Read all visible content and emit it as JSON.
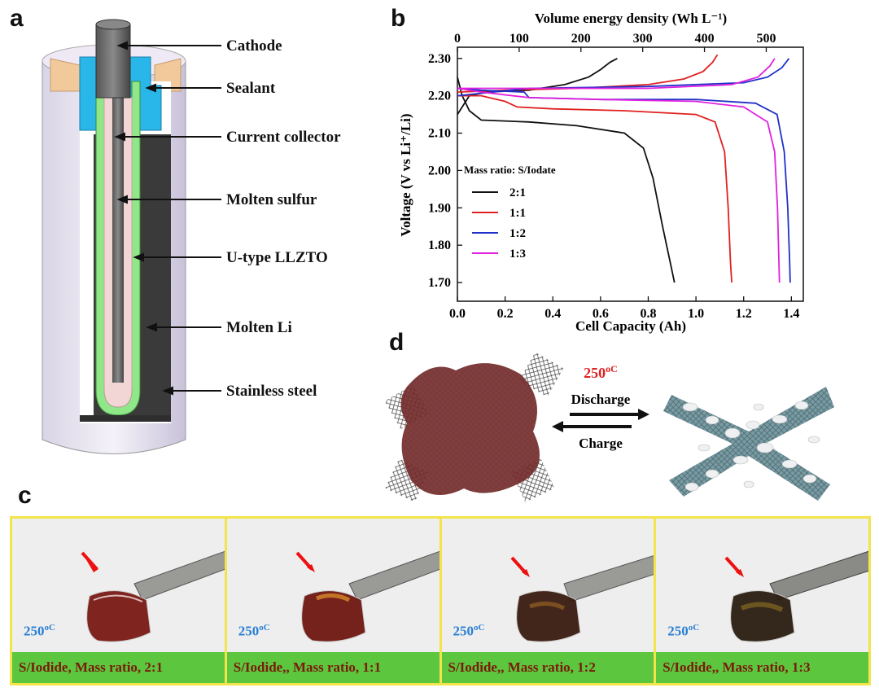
{
  "panels": {
    "a": "a",
    "b": "b",
    "c": "c",
    "d": "d"
  },
  "panel_a": {
    "labels": [
      "Cathode",
      "Sealant",
      "Current collector",
      "Molten sulfur",
      "U-type LLZTO",
      "Molten Li",
      "Stainless steel"
    ]
  },
  "chart_data": {
    "type": "line",
    "xlabel": "Cell Capacity (Ah)",
    "top_xlabel": "Volume energy density (Wh L⁻¹)",
    "ylabel": "Voltage (V vs Li⁺/Li)",
    "xlim": [
      0,
      1.45
    ],
    "ylim": [
      1.65,
      2.33
    ],
    "top_xlim": [
      0,
      560
    ],
    "x_ticks": [
      "0.0",
      "0.2",
      "0.4",
      "0.6",
      "0.8",
      "1.0",
      "1.2",
      "1.4"
    ],
    "y_ticks": [
      "1.70",
      "1.80",
      "1.90",
      "2.00",
      "2.10",
      "2.20",
      "2.30"
    ],
    "top_ticks": [
      "0",
      "100",
      "200",
      "300",
      "400",
      "500"
    ],
    "legend_title": "Mass ratio: S/Iodate",
    "legend_position": "left",
    "series": [
      {
        "name": "2:1",
        "color": "#111111",
        "discharge": [
          [
            0.0,
            2.25
          ],
          [
            0.02,
            2.2
          ],
          [
            0.05,
            2.16
          ],
          [
            0.1,
            2.135
          ],
          [
            0.3,
            2.13
          ],
          [
            0.5,
            2.12
          ],
          [
            0.7,
            2.1
          ],
          [
            0.78,
            2.06
          ],
          [
            0.82,
            1.98
          ],
          [
            0.86,
            1.85
          ],
          [
            0.89,
            1.76
          ],
          [
            0.91,
            1.7
          ]
        ],
        "charge": [
          [
            0.0,
            2.15
          ],
          [
            0.05,
            2.2
          ],
          [
            0.12,
            2.21
          ],
          [
            0.3,
            2.215
          ],
          [
            0.45,
            2.23
          ],
          [
            0.55,
            2.25
          ],
          [
            0.6,
            2.27
          ],
          [
            0.64,
            2.29
          ],
          [
            0.67,
            2.3
          ]
        ]
      },
      {
        "name": "1:1",
        "color": "#e02020",
        "discharge": [
          [
            0.0,
            2.2
          ],
          [
            0.1,
            2.2
          ],
          [
            0.2,
            2.185
          ],
          [
            0.25,
            2.17
          ],
          [
            0.4,
            2.165
          ],
          [
            0.7,
            2.16
          ],
          [
            1.0,
            2.15
          ],
          [
            1.08,
            2.13
          ],
          [
            1.12,
            2.05
          ],
          [
            1.135,
            1.9
          ],
          [
            1.145,
            1.75
          ],
          [
            1.15,
            1.7
          ]
        ],
        "charge": [
          [
            0.0,
            2.21
          ],
          [
            0.2,
            2.215
          ],
          [
            0.5,
            2.22
          ],
          [
            0.8,
            2.23
          ],
          [
            0.95,
            2.245
          ],
          [
            1.03,
            2.265
          ],
          [
            1.07,
            2.29
          ],
          [
            1.09,
            2.31
          ]
        ]
      },
      {
        "name": "1:2",
        "color": "#2030c8",
        "discharge": [
          [
            0.0,
            2.22
          ],
          [
            0.1,
            2.215
          ],
          [
            0.28,
            2.21
          ],
          [
            0.3,
            2.195
          ],
          [
            0.6,
            2.19
          ],
          [
            1.0,
            2.19
          ],
          [
            1.25,
            2.18
          ],
          [
            1.34,
            2.15
          ],
          [
            1.37,
            2.05
          ],
          [
            1.385,
            1.9
          ],
          [
            1.393,
            1.75
          ],
          [
            1.395,
            1.7
          ]
        ],
        "charge": [
          [
            0.0,
            2.2
          ],
          [
            0.3,
            2.22
          ],
          [
            0.8,
            2.225
          ],
          [
            1.2,
            2.235
          ],
          [
            1.3,
            2.25
          ],
          [
            1.36,
            2.275
          ],
          [
            1.39,
            2.3
          ]
        ]
      },
      {
        "name": "1:3",
        "color": "#e020e0",
        "discharge": [
          [
            0.0,
            2.22
          ],
          [
            0.1,
            2.21
          ],
          [
            0.3,
            2.195
          ],
          [
            0.6,
            2.19
          ],
          [
            1.0,
            2.185
          ],
          [
            1.2,
            2.17
          ],
          [
            1.3,
            2.13
          ],
          [
            1.33,
            2.05
          ],
          [
            1.342,
            1.9
          ],
          [
            1.348,
            1.75
          ],
          [
            1.35,
            1.7
          ]
        ],
        "charge": [
          [
            0.0,
            2.22
          ],
          [
            0.3,
            2.22
          ],
          [
            0.8,
            2.22
          ],
          [
            1.15,
            2.23
          ],
          [
            1.26,
            2.25
          ],
          [
            1.31,
            2.28
          ],
          [
            1.33,
            2.3
          ]
        ]
      }
    ]
  },
  "panel_d": {
    "temperature": "250",
    "temperature_unit": "oC",
    "discharge": "Discharge",
    "charge": "Charge"
  },
  "panel_c": {
    "temperature": "250",
    "temperature_unit": "oC",
    "captions": [
      "S/Iodide, Mass ratio, 2:1",
      "S/Iodide,, Mass ratio, 1:1",
      "S/Iodide,, Mass ratio, 1:2",
      "S/Iodide,, Mass ratio, 1:3"
    ]
  }
}
